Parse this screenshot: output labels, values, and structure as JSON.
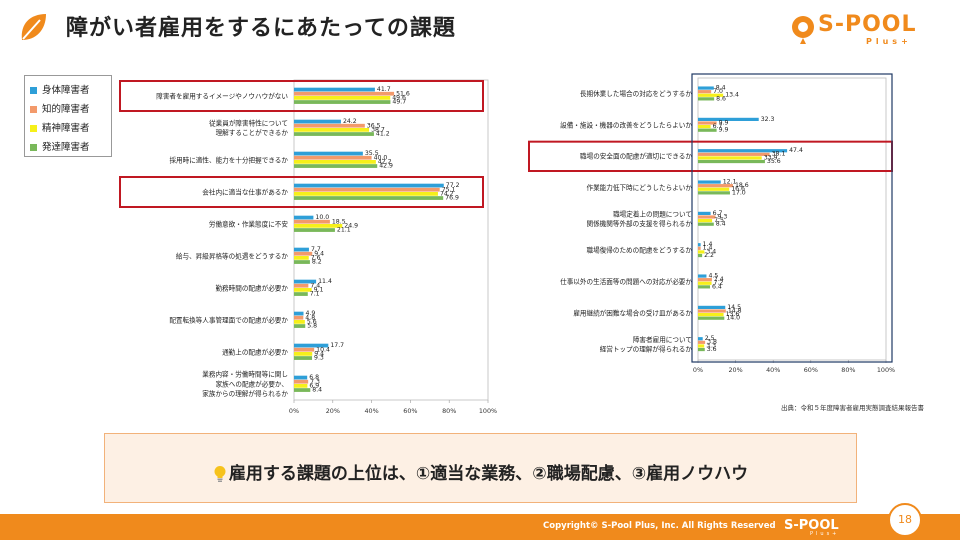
{
  "slide": {
    "title": "障がい者雇用をするにあたっての課題",
    "brand_name": "S-POOL",
    "brand_sub": "Plus+"
  },
  "legend": {
    "items": [
      {
        "label": "身体障害者",
        "color": "#2e9fd8"
      },
      {
        "label": "知的障害者",
        "color": "#f39a6b"
      },
      {
        "label": "精神障害者",
        "color": "#f6f01a"
      },
      {
        "label": "発達障害者",
        "color": "#79b85a"
      }
    ]
  },
  "colors": {
    "accent": "#f08a1c",
    "highlight_box": "#c01822",
    "right_frame": "#1f3864",
    "callout_bg": "#fdf0e4"
  },
  "chart_data": [
    {
      "type": "bar",
      "orientation": "horizontal",
      "categories": [
        [
          "障害者を雇用するイメージやノウハウがない"
        ],
        [
          "従業員が障害特性について",
          "理解することができるか"
        ],
        [
          "採用時に適性、能力を十分把握できるか"
        ],
        [
          "会社内に適当な仕事があるか"
        ],
        [
          "労働意欲・作業態度に不安"
        ],
        [
          "給与、昇級昇格等の処遇をどうするか"
        ],
        [
          "勤務時間の配慮が必要か"
        ],
        [
          "配置転換等人事管理面での配慮が必要か"
        ],
        [
          "通勤上の配慮が必要か"
        ],
        [
          "業務内容・労働時間等に関し",
          "家族への配慮が必要か、",
          "家族からの理解が得られるか"
        ]
      ],
      "series": [
        {
          "name": "身体障害者",
          "values": [
            41.7,
            24.2,
            35.5,
            77.2,
            10.0,
            7.7,
            11.4,
            4.9,
            17.7,
            6.8
          ]
        },
        {
          "name": "知的障害者",
          "values": [
            51.6,
            36.5,
            40.0,
            75.1,
            18.5,
            9.4,
            7.4,
            4.8,
            10.4,
            7.3
          ]
        },
        {
          "name": "精神障害者",
          "values": [
            49.6,
            38.7,
            42.2,
            74.2,
            24.9,
            7.6,
            9.1,
            5.6,
            9.4,
            6.9
          ]
        },
        {
          "name": "発達障害者",
          "values": [
            49.7,
            41.2,
            42.9,
            76.9,
            21.1,
            8.2,
            7.1,
            5.8,
            9.3,
            8.4
          ]
        }
      ],
      "xlim": [
        0,
        100
      ],
      "xticks": [
        "0%",
        "20%",
        "40%",
        "60%",
        "80%",
        "100%"
      ],
      "highlighted_categories": [
        0,
        3
      ]
    },
    {
      "type": "bar",
      "orientation": "horizontal",
      "categories": [
        [
          "長期休業した場合の対応をどうするか"
        ],
        [
          "設備・施設・機器の改善をどうしたらよいか"
        ],
        [
          "職場の安全面の配慮が適切にできるか"
        ],
        [
          "作業能力低下時にどうしたらよいか"
        ],
        [
          "職場定着上の問題について",
          "関係機関等外部の支援を得られるか"
        ],
        [
          "職場復帰のための配慮をどうするか"
        ],
        [
          "仕事以外の生活面等の問題への対応が必要か"
        ],
        [
          "雇用継続が困難な場合の受け皿があるか"
        ],
        [
          "障害者雇用について",
          "経営トップの理解が得られるか"
        ]
      ],
      "series": [
        {
          "name": "身体障害者",
          "values": [
            8.4,
            32.3,
            47.4,
            12.1,
            6.7,
            1.4,
            4.5,
            14.5,
            2.5
          ]
        },
        {
          "name": "知的障害者",
          "values": [
            7.0,
            9.9,
            38.1,
            18.6,
            9.3,
            1.4,
            7.4,
            14.8,
            3.8
          ]
        },
        {
          "name": "精神障害者",
          "values": [
            13.4,
            6.7,
            33.9,
            16.6,
            7.5,
            3.4,
            7.2,
            13.6,
            3.3
          ]
        },
        {
          "name": "発達障害者",
          "values": [
            8.6,
            9.9,
            35.6,
            17.0,
            8.4,
            2.2,
            6.4,
            14.0,
            3.6
          ]
        }
      ],
      "xlim": [
        0,
        100
      ],
      "xticks": [
        "0%",
        "20%",
        "40%",
        "60%",
        "80%",
        "100%"
      ],
      "highlighted_categories": [
        2
      ]
    }
  ],
  "source": "出典：令和５年度障害者雇用実態調査結果報告書",
  "callout": {
    "text": "雇用する課題の上位は、①適当な業務、②職場配慮、③雇用ノウハウ"
  },
  "footer": {
    "copyright": "Copyright© S-Pool Plus, Inc. All Rights Reserved",
    "logo_text": "S-POOL",
    "logo_sub": "Plus+",
    "page_number": "18"
  }
}
